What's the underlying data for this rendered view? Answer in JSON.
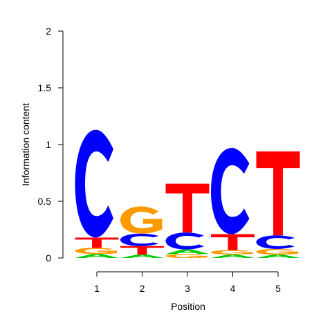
{
  "chart_data": {
    "type": "sequence-logo",
    "xlabel": "Position",
    "ylabel": "Information content",
    "ylim": [
      0,
      2
    ],
    "y_ticks": [
      "0",
      "0.5",
      "1",
      "1.5",
      "2"
    ],
    "y_tick_values": [
      0,
      0.5,
      1,
      1.5,
      2
    ],
    "positions": [
      "1",
      "2",
      "3",
      "4",
      "5"
    ],
    "colors": {
      "A": "#00cc00",
      "C": "#0000ff",
      "G": "#ff9900",
      "T": "#ff0000"
    },
    "stacks": [
      [
        {
          "letter": "A",
          "value": 0.035
        },
        {
          "letter": "G",
          "value": 0.055
        },
        {
          "letter": "T",
          "value": 0.09
        },
        {
          "letter": "C",
          "value": 0.95
        }
      ],
      [
        {
          "letter": "A",
          "value": 0.03
        },
        {
          "letter": "T",
          "value": 0.075
        },
        {
          "letter": "C",
          "value": 0.11
        },
        {
          "letter": "G",
          "value": 0.24
        }
      ],
      [
        {
          "letter": "G",
          "value": 0.035
        },
        {
          "letter": "A",
          "value": 0.04
        },
        {
          "letter": "C",
          "value": 0.15
        },
        {
          "letter": "T",
          "value": 0.43
        }
      ],
      [
        {
          "letter": "A",
          "value": 0.03
        },
        {
          "letter": "G",
          "value": 0.04
        },
        {
          "letter": "T",
          "value": 0.14
        },
        {
          "letter": "C",
          "value": 0.76
        }
      ],
      [
        {
          "letter": "A",
          "value": 0.03
        },
        {
          "letter": "G",
          "value": 0.05
        },
        {
          "letter": "C",
          "value": 0.12
        },
        {
          "letter": "T",
          "value": 0.74
        }
      ]
    ]
  }
}
